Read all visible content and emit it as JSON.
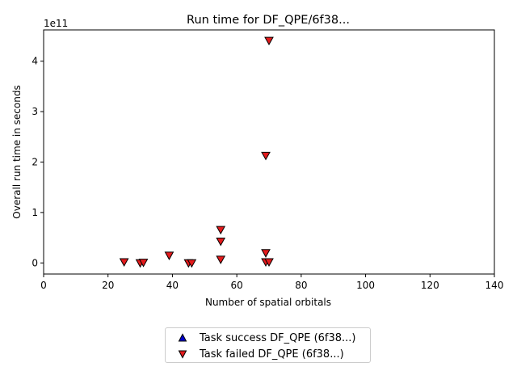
{
  "chart_data": {
    "type": "scatter",
    "title": "Run time for DF_QPE/6f38...",
    "xlabel": "Number of spatial orbitals",
    "ylabel": "Overall run time in seconds",
    "y_offset_text": "1e11",
    "y_multiplier": 100000000000,
    "xlim": [
      0,
      140
    ],
    "ylim": [
      -0.22,
      4.62
    ],
    "x_ticks": [
      0,
      20,
      40,
      60,
      80,
      100,
      120,
      140
    ],
    "y_ticks": [
      0,
      1,
      2,
      3,
      4
    ],
    "grid": false,
    "legend_placement": "below-center",
    "series": [
      {
        "name": "Task success DF_QPE (6f38...)",
        "marker": "triangle-up",
        "color": "#0000cc",
        "points": []
      },
      {
        "name": "Task failed DF_QPE (6f38...)",
        "marker": "triangle-down",
        "color": "#e31a1c",
        "points": [
          {
            "x": 25,
            "y": 0.02
          },
          {
            "x": 30,
            "y": 0.0
          },
          {
            "x": 31,
            "y": 0.01
          },
          {
            "x": 39,
            "y": 0.15
          },
          {
            "x": 45,
            "y": 0.0
          },
          {
            "x": 46,
            "y": 0.0
          },
          {
            "x": 55,
            "y": 0.07
          },
          {
            "x": 55,
            "y": 0.43
          },
          {
            "x": 55,
            "y": 0.66
          },
          {
            "x": 69,
            "y": 2.13
          },
          {
            "x": 69,
            "y": 0.2
          },
          {
            "x": 69,
            "y": 0.02
          },
          {
            "x": 70,
            "y": 0.02
          },
          {
            "x": 70,
            "y": 4.41
          }
        ]
      }
    ]
  }
}
